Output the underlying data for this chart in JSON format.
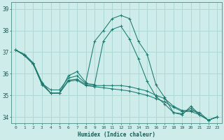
{
  "xlabel": "Humidex (Indice chaleur)",
  "ylabel": "",
  "bg_color": "#ceecea",
  "grid_color": "#aed8d4",
  "line_color": "#1a7a6e",
  "xlim": [
    -0.5,
    23.5
  ],
  "ylim": [
    33.7,
    39.3
  ],
  "yticks": [
    34,
    35,
    36,
    37,
    38,
    39
  ],
  "xticks": [
    0,
    1,
    2,
    3,
    4,
    5,
    6,
    7,
    8,
    9,
    10,
    11,
    12,
    13,
    14,
    15,
    16,
    17,
    18,
    19,
    20,
    21,
    22,
    23
  ],
  "lines": [
    [
      37.1,
      36.9,
      36.5,
      35.6,
      35.1,
      35.1,
      35.9,
      36.1,
      35.6,
      37.5,
      38.0,
      38.55,
      38.7,
      38.55,
      37.5,
      36.9,
      35.5,
      34.9,
      34.2,
      34.1,
      34.5,
      34.1,
      33.85,
      34.0
    ],
    [
      37.1,
      36.85,
      36.45,
      35.55,
      35.25,
      35.25,
      35.8,
      35.9,
      35.55,
      35.5,
      37.5,
      38.05,
      38.2,
      37.6,
      36.7,
      35.65,
      34.95,
      34.6,
      34.2,
      34.15,
      34.4,
      34.1,
      33.85,
      34.0
    ],
    [
      37.1,
      36.85,
      36.45,
      35.5,
      35.1,
      35.1,
      35.7,
      35.75,
      35.5,
      35.45,
      35.45,
      35.45,
      35.45,
      35.4,
      35.3,
      35.2,
      35.0,
      34.85,
      34.5,
      34.3,
      34.3,
      34.2,
      33.85,
      34.0
    ],
    [
      37.1,
      36.85,
      36.45,
      35.5,
      35.1,
      35.1,
      35.65,
      35.7,
      35.45,
      35.4,
      35.35,
      35.3,
      35.25,
      35.2,
      35.1,
      35.0,
      34.85,
      34.7,
      34.45,
      34.25,
      34.25,
      34.1,
      33.85,
      34.0
    ]
  ]
}
